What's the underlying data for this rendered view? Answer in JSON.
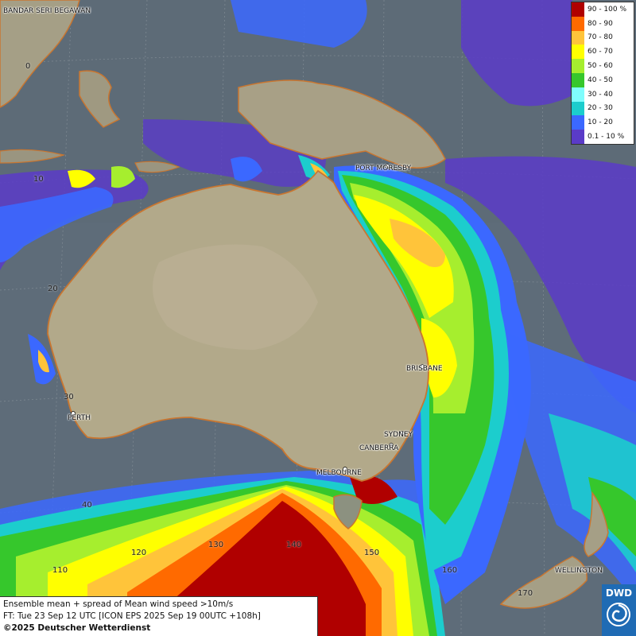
{
  "legend": {
    "items": [
      {
        "label": "90 - 100 %",
        "color": "#b00000"
      },
      {
        "label": "80 - 90",
        "color": "#ff6a00"
      },
      {
        "label": "70 - 80",
        "color": "#ffc43a"
      },
      {
        "label": "60 - 70",
        "color": "#ffff00"
      },
      {
        "label": "50 - 60",
        "color": "#a6ee2e"
      },
      {
        "label": "40 - 50",
        "color": "#36c72c"
      },
      {
        "label": "30 - 40",
        "color": "#7ffdfd"
      },
      {
        "label": "20 - 30",
        "color": "#1ccdcd"
      },
      {
        "label": "10 - 20",
        "color": "#3b68ff"
      },
      {
        "label": "0.1 - 10 %",
        "color": "#5a3bc8"
      }
    ]
  },
  "cities": [
    {
      "name": "BANDAR SERI BEGAWAN"
    },
    {
      "name": "PORT MORESBY"
    },
    {
      "name": "BRISBANE"
    },
    {
      "name": "PERTH"
    },
    {
      "name": "SYDNEY"
    },
    {
      "name": "CANBERRA"
    },
    {
      "name": "MELBOURNE"
    },
    {
      "name": "WELLINGTON"
    }
  ],
  "grid_labels": [
    "0",
    "10",
    "20",
    "30",
    "40",
    "110",
    "120",
    "130",
    "140",
    "150",
    "160",
    "170"
  ],
  "info": {
    "line1": "Ensemble mean + spread of Mean wind speed >10m/s",
    "line2": "FT: Tue 23 Sep 12 UTC [ICON EPS 2025 Sep 19 00UTC +108h]",
    "line3": "©2025 Deutscher Wetterdienst"
  },
  "logo": {
    "text": "DWD"
  }
}
